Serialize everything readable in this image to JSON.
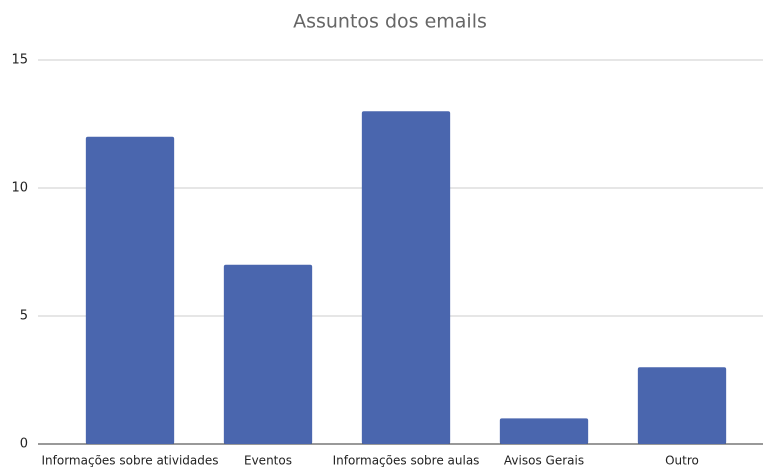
{
  "chart_data": {
    "type": "bar",
    "title": "Assuntos dos emails",
    "categories": [
      "Informações sobre atividades",
      "Eventos",
      "Informações sobre aulas",
      "Avisos Gerais",
      "Outro"
    ],
    "values": [
      12,
      7,
      13,
      1,
      3
    ],
    "color": "#4a66ae",
    "ylim": [
      0,
      15
    ],
    "yticks": [
      0,
      5,
      10,
      15
    ],
    "grid": true
  }
}
